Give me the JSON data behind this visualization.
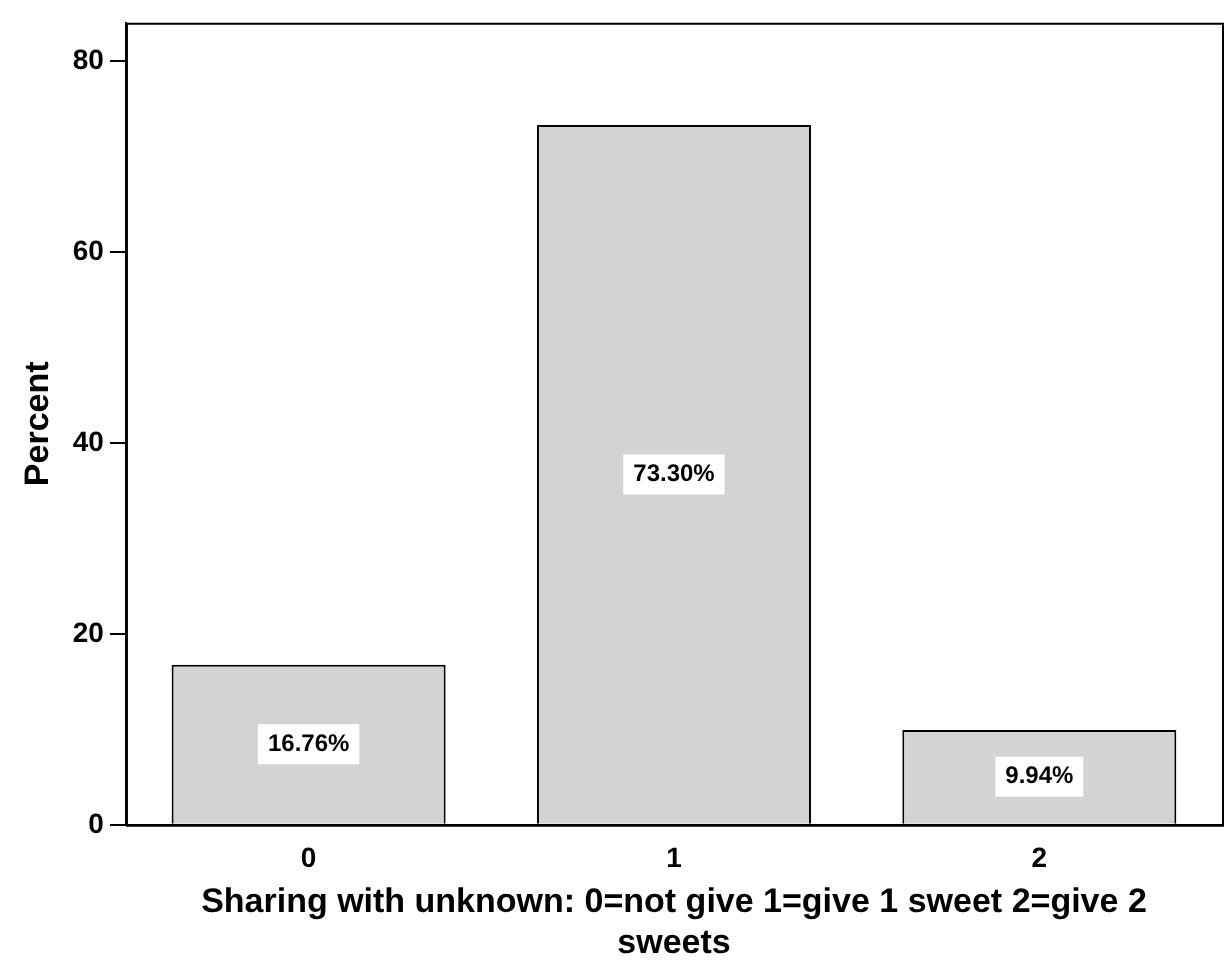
{
  "chart_data": {
    "type": "bar",
    "ylabel": "Percent",
    "xlabel": "Sharing with unknown: 0=not give 1=give 1 sweet 2=give 2 sweets",
    "categories": [
      "0",
      "1",
      "2"
    ],
    "values": [
      16.76,
      73.3,
      9.94
    ],
    "value_labels": [
      "16.76%",
      "73.30%",
      "9.94%"
    ],
    "color": "#d3d3d3",
    "ylim": [
      0,
      84
    ],
    "yticks": [
      0,
      20,
      40,
      60,
      80
    ],
    "grid": false,
    "legend": false
  }
}
